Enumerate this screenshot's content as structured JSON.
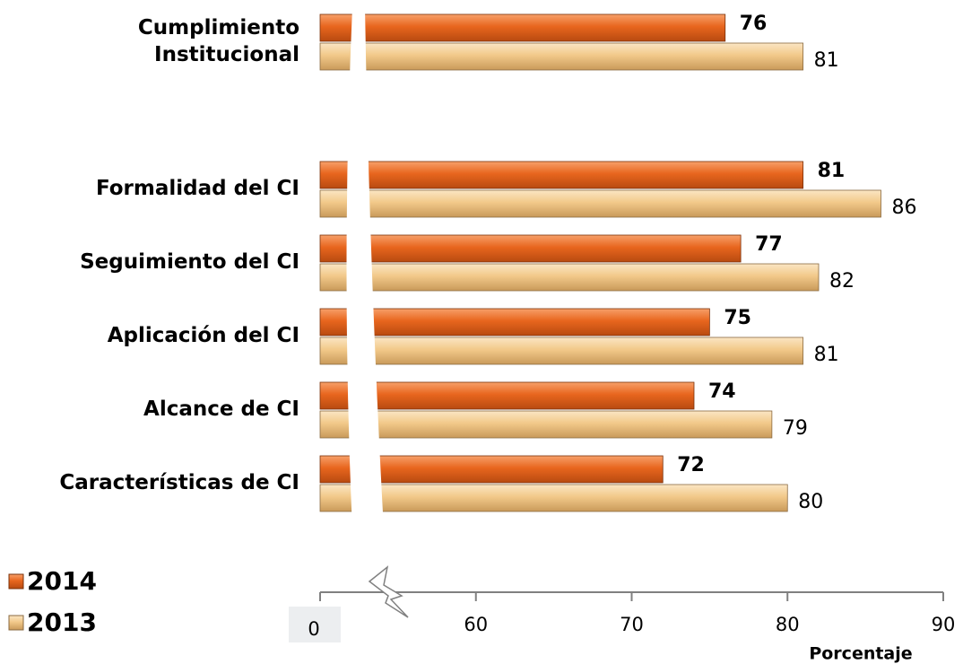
{
  "chart_data": {
    "type": "bar",
    "orientation": "horizontal",
    "categories": [
      "Cumplimiento\nInstitucional",
      "Formalidad del CI",
      "Seguimiento del CI",
      "Aplicación del CI",
      "Alcance de CI",
      "Características de CI"
    ],
    "series": [
      {
        "name": "2014",
        "color": "#e8661e",
        "values": [
          76,
          81,
          77,
          75,
          74,
          72
        ]
      },
      {
        "name": "2013",
        "color": "#f2c98a",
        "values": [
          81,
          86,
          82,
          81,
          79,
          80
        ]
      }
    ],
    "xlim": [
      0,
      90
    ],
    "xticks": [
      0,
      60,
      70,
      80,
      90
    ],
    "axis_break": true,
    "xlabel": "Porcentaje",
    "legend": "lower left"
  }
}
